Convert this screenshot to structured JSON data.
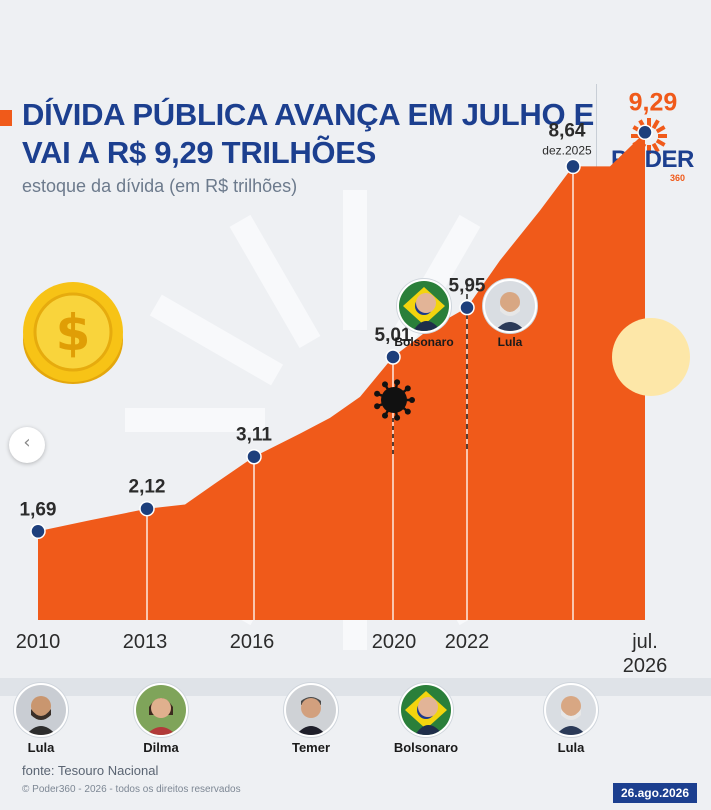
{
  "header": {
    "title": "DÍVIDA PÚBLICA AVANÇA EM JULHO E VAI A R$ 9,29 TRILHÕES",
    "subtitle": "estoque da dívida (em R$ trilhões)"
  },
  "logo": {
    "name": "PODER",
    "sub": "360"
  },
  "colors": {
    "accent": "#f05a1a",
    "brand_blue": "#1c3f8f",
    "marker": "#1d3f7c",
    "highlight_circle": "#fde7a8"
  },
  "chart_data": {
    "type": "area",
    "title": "DÍVIDA PÚBLICA AVANÇA EM JULHO E VAI A R$ 9,29 TRILHÕES",
    "subtitle": "estoque da dívida (em R$ trilhões)",
    "xlabel": "",
    "ylabel": "",
    "ylim": [
      0,
      10
    ],
    "grid": false,
    "area_values": [
      1.69,
      1.9,
      2.12,
      2.2,
      2.6,
      3.11,
      3.55,
      3.85,
      4.25,
      5.01,
      5.55,
      5.95,
      6.85,
      7.8,
      8.64,
      8.64,
      9.29
    ],
    "labeled_points": [
      {
        "label": "1,69",
        "value": 1.69,
        "note": ""
      },
      {
        "label": "2,12",
        "value": 2.12,
        "note": ""
      },
      {
        "label": "3,11",
        "value": 3.11,
        "note": ""
      },
      {
        "label": "5,01",
        "value": 5.01,
        "note": ""
      },
      {
        "label": "5,95",
        "value": 5.95,
        "note": ""
      },
      {
        "label": "8,64",
        "value": 8.64,
        "note": "dez.2025"
      },
      {
        "label": "9,29",
        "value": 9.29,
        "note": "",
        "highlight": true
      }
    ],
    "x_ticks": [
      "2010",
      "2013",
      "2016",
      "2020",
      "2022",
      "jul.",
      "2026"
    ]
  },
  "presidents_timeline": [
    "Lula",
    "Dilma",
    "Temer",
    "Bolsonaro",
    "Lula"
  ],
  "presidents_top": [
    "Bolsonaro",
    "Lula"
  ],
  "icons": {
    "coin": "dollar-coin-icon",
    "virus": "virus-icon",
    "nav": "chevron-left-icon"
  },
  "footer": {
    "source": "fonte: Tesouro Nacional",
    "copyright": "© Poder360 - 2026 - todos os direitos reservados",
    "date": "26.ago.2026"
  }
}
